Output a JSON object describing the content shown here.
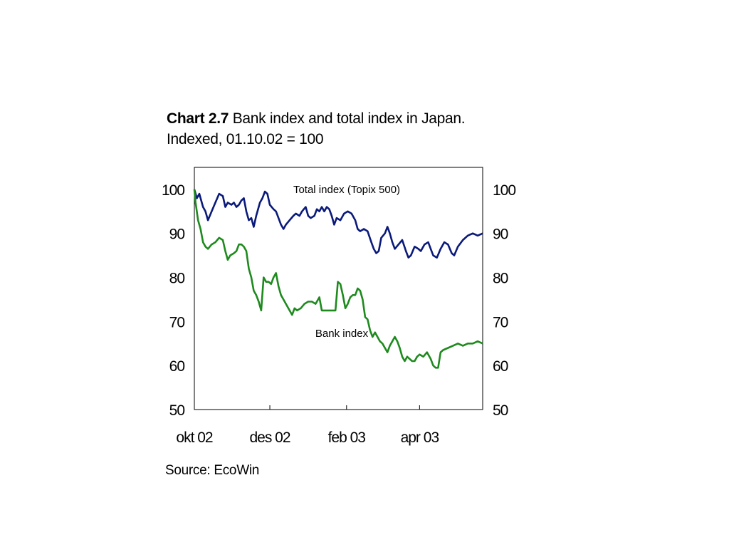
{
  "title": {
    "label": "Chart 2.7",
    "text": "Bank index and total index in Japan.",
    "subtitle": "Indexed, 01.10.02 = 100"
  },
  "source": "Source: EcoWin",
  "chart_data": {
    "type": "line",
    "x_tick_labels": [
      "okt 02",
      "des 02",
      "feb 03",
      "apr 03"
    ],
    "x_tick_dates": [
      "2002-10-01",
      "2002-12-01",
      "2003-02-01",
      "2003-04-01"
    ],
    "x_range": [
      "2002-10-01",
      "2003-05-22"
    ],
    "ylim": [
      50,
      105
    ],
    "yticks": [
      50,
      60,
      70,
      80,
      90,
      100
    ],
    "y_axis_left": true,
    "y_axis_right": true,
    "grid": false,
    "annotations": [
      {
        "text": "Total index (Topix 500)",
        "series": "Total index (Topix 500)"
      },
      {
        "text": "Bank index",
        "series": "Bank index"
      }
    ],
    "series": [
      {
        "name": "Total index (Topix 500)",
        "color": "#0a1a7a",
        "points": [
          [
            "2002-10-01",
            100
          ],
          [
            "2002-10-03",
            98
          ],
          [
            "2002-10-05",
            99
          ],
          [
            "2002-10-08",
            96
          ],
          [
            "2002-10-10",
            95
          ],
          [
            "2002-10-12",
            93
          ],
          [
            "2002-10-15",
            95
          ],
          [
            "2002-10-18",
            97
          ],
          [
            "2002-10-21",
            99
          ],
          [
            "2002-10-24",
            98.5
          ],
          [
            "2002-10-26",
            96
          ],
          [
            "2002-10-28",
            97
          ],
          [
            "2002-10-31",
            96.5
          ],
          [
            "2002-11-02",
            97
          ],
          [
            "2002-11-04",
            96
          ],
          [
            "2002-11-06",
            96.5
          ],
          [
            "2002-11-08",
            97.5
          ],
          [
            "2002-11-10",
            98
          ],
          [
            "2002-11-12",
            95
          ],
          [
            "2002-11-14",
            93
          ],
          [
            "2002-11-16",
            93.5
          ],
          [
            "2002-11-18",
            91.5
          ],
          [
            "2002-11-20",
            94
          ],
          [
            "2002-11-23",
            97
          ],
          [
            "2002-11-25",
            98
          ],
          [
            "2002-11-27",
            99.5
          ],
          [
            "2002-11-29",
            99
          ],
          [
            "2002-12-01",
            96.5
          ],
          [
            "2002-12-04",
            95.5
          ],
          [
            "2002-12-06",
            95
          ],
          [
            "2002-12-08",
            93.5
          ],
          [
            "2002-12-10",
            92
          ],
          [
            "2002-12-12",
            91
          ],
          [
            "2002-12-14",
            92
          ],
          [
            "2002-12-17",
            93
          ],
          [
            "2002-12-20",
            94
          ],
          [
            "2002-12-22",
            94.5
          ],
          [
            "2002-12-25",
            94
          ],
          [
            "2002-12-27",
            95
          ],
          [
            "2002-12-30",
            96
          ],
          [
            "2003-01-01",
            94
          ],
          [
            "2003-01-03",
            93.5
          ],
          [
            "2003-01-06",
            94
          ],
          [
            "2003-01-08",
            95.5
          ],
          [
            "2003-01-10",
            95
          ],
          [
            "2003-01-12",
            96
          ],
          [
            "2003-01-14",
            95
          ],
          [
            "2003-01-16",
            96
          ],
          [
            "2003-01-18",
            95.5
          ],
          [
            "2003-01-20",
            94
          ],
          [
            "2003-01-22",
            92
          ],
          [
            "2003-01-24",
            93.5
          ],
          [
            "2003-01-27",
            93
          ],
          [
            "2003-01-30",
            94.5
          ],
          [
            "2003-02-02",
            95
          ],
          [
            "2003-02-05",
            94.5
          ],
          [
            "2003-02-08",
            93
          ],
          [
            "2003-02-10",
            91
          ],
          [
            "2003-02-12",
            90.5
          ],
          [
            "2003-02-15",
            91
          ],
          [
            "2003-02-18",
            90.5
          ],
          [
            "2003-02-21",
            88
          ],
          [
            "2003-02-23",
            86.5
          ],
          [
            "2003-02-25",
            85.5
          ],
          [
            "2003-02-27",
            86
          ],
          [
            "2003-03-01",
            89
          ],
          [
            "2003-03-04",
            90
          ],
          [
            "2003-03-06",
            91.5
          ],
          [
            "2003-03-08",
            90
          ],
          [
            "2003-03-10",
            88
          ],
          [
            "2003-03-12",
            86.5
          ],
          [
            "2003-03-15",
            87.5
          ],
          [
            "2003-03-18",
            88.5
          ],
          [
            "2003-03-21",
            86
          ],
          [
            "2003-03-23",
            84.5
          ],
          [
            "2003-03-25",
            85
          ],
          [
            "2003-03-28",
            87
          ],
          [
            "2003-03-31",
            86.5
          ],
          [
            "2003-04-02",
            86
          ],
          [
            "2003-04-05",
            87.5
          ],
          [
            "2003-04-08",
            88
          ],
          [
            "2003-04-10",
            86.5
          ],
          [
            "2003-04-12",
            85
          ],
          [
            "2003-04-15",
            84.5
          ],
          [
            "2003-04-18",
            86.5
          ],
          [
            "2003-04-21",
            88
          ],
          [
            "2003-04-24",
            87.5
          ],
          [
            "2003-04-27",
            85.5
          ],
          [
            "2003-04-29",
            85
          ],
          [
            "2003-05-02",
            87
          ],
          [
            "2003-05-06",
            88.5
          ],
          [
            "2003-05-10",
            89.5
          ],
          [
            "2003-05-14",
            90
          ],
          [
            "2003-05-18",
            89.5
          ],
          [
            "2003-05-22",
            90
          ]
        ]
      },
      {
        "name": "Bank index",
        "color": "#1e8a1e",
        "points": [
          [
            "2002-10-01",
            100
          ],
          [
            "2002-10-02",
            97
          ],
          [
            "2002-10-04",
            93
          ],
          [
            "2002-10-06",
            91
          ],
          [
            "2002-10-08",
            88
          ],
          [
            "2002-10-10",
            87
          ],
          [
            "2002-10-12",
            86.5
          ],
          [
            "2002-10-15",
            87.5
          ],
          [
            "2002-10-18",
            88
          ],
          [
            "2002-10-21",
            89
          ],
          [
            "2002-10-24",
            88.5
          ],
          [
            "2002-10-26",
            86
          ],
          [
            "2002-10-28",
            84
          ],
          [
            "2002-10-30",
            85
          ],
          [
            "2002-11-02",
            85.5
          ],
          [
            "2002-11-04",
            86
          ],
          [
            "2002-11-06",
            87.5
          ],
          [
            "2002-11-08",
            87.5
          ],
          [
            "2002-11-10",
            87
          ],
          [
            "2002-11-12",
            86
          ],
          [
            "2002-11-14",
            82
          ],
          [
            "2002-11-16",
            80
          ],
          [
            "2002-11-18",
            77
          ],
          [
            "2002-11-20",
            76
          ],
          [
            "2002-11-22",
            74.5
          ],
          [
            "2002-11-24",
            72.5
          ],
          [
            "2002-11-26",
            80
          ],
          [
            "2002-11-28",
            79
          ],
          [
            "2002-11-30",
            79
          ],
          [
            "2002-12-02",
            78.5
          ],
          [
            "2002-12-04",
            80
          ],
          [
            "2002-12-06",
            81
          ],
          [
            "2002-12-08",
            78
          ],
          [
            "2002-12-10",
            76
          ],
          [
            "2002-12-12",
            75
          ],
          [
            "2002-12-14",
            74
          ],
          [
            "2002-12-17",
            72.5
          ],
          [
            "2002-12-19",
            71.5
          ],
          [
            "2002-12-21",
            73
          ],
          [
            "2002-12-23",
            72.5
          ],
          [
            "2002-12-26",
            73
          ],
          [
            "2002-12-29",
            74
          ],
          [
            "2003-01-01",
            74.5
          ],
          [
            "2003-01-04",
            74.5
          ],
          [
            "2003-01-07",
            74
          ],
          [
            "2003-01-10",
            75.5
          ],
          [
            "2003-01-12",
            72.5
          ],
          [
            "2003-01-14",
            72.5
          ],
          [
            "2003-01-17",
            72.5
          ],
          [
            "2003-01-20",
            72.5
          ],
          [
            "2003-01-23",
            72.5
          ],
          [
            "2003-01-25",
            79
          ],
          [
            "2003-01-27",
            78.5
          ],
          [
            "2003-01-29",
            76
          ],
          [
            "2003-01-31",
            73
          ],
          [
            "2003-02-02",
            74
          ],
          [
            "2003-02-04",
            75.5
          ],
          [
            "2003-02-06",
            76
          ],
          [
            "2003-02-08",
            76
          ],
          [
            "2003-02-10",
            77.5
          ],
          [
            "2003-02-12",
            77
          ],
          [
            "2003-02-14",
            75
          ],
          [
            "2003-02-16",
            71
          ],
          [
            "2003-02-18",
            70.5
          ],
          [
            "2003-02-20",
            68
          ],
          [
            "2003-02-22",
            66.5
          ],
          [
            "2003-02-24",
            67.5
          ],
          [
            "2003-02-26",
            66.5
          ],
          [
            "2003-02-28",
            65.5
          ],
          [
            "2003-03-02",
            65
          ],
          [
            "2003-03-04",
            64
          ],
          [
            "2003-03-06",
            63
          ],
          [
            "2003-03-08",
            64.5
          ],
          [
            "2003-03-10",
            65.5
          ],
          [
            "2003-03-12",
            66.5
          ],
          [
            "2003-03-14",
            65.5
          ],
          [
            "2003-03-16",
            64
          ],
          [
            "2003-03-18",
            62
          ],
          [
            "2003-03-20",
            61
          ],
          [
            "2003-03-22",
            62
          ],
          [
            "2003-03-24",
            61.5
          ],
          [
            "2003-03-26",
            61
          ],
          [
            "2003-03-28",
            61
          ],
          [
            "2003-03-30",
            62
          ],
          [
            "2003-04-01",
            62.5
          ],
          [
            "2003-04-04",
            62
          ],
          [
            "2003-04-07",
            63
          ],
          [
            "2003-04-10",
            61.5
          ],
          [
            "2003-04-12",
            60
          ],
          [
            "2003-04-14",
            59.5
          ],
          [
            "2003-04-16",
            59.5
          ],
          [
            "2003-04-18",
            63
          ],
          [
            "2003-04-20",
            63.5
          ],
          [
            "2003-04-24",
            64
          ],
          [
            "2003-04-28",
            64.5
          ],
          [
            "2003-05-02",
            65
          ],
          [
            "2003-05-06",
            64.5
          ],
          [
            "2003-05-10",
            65
          ],
          [
            "2003-05-14",
            65
          ],
          [
            "2003-05-18",
            65.5
          ],
          [
            "2003-05-22",
            65
          ]
        ]
      }
    ]
  }
}
